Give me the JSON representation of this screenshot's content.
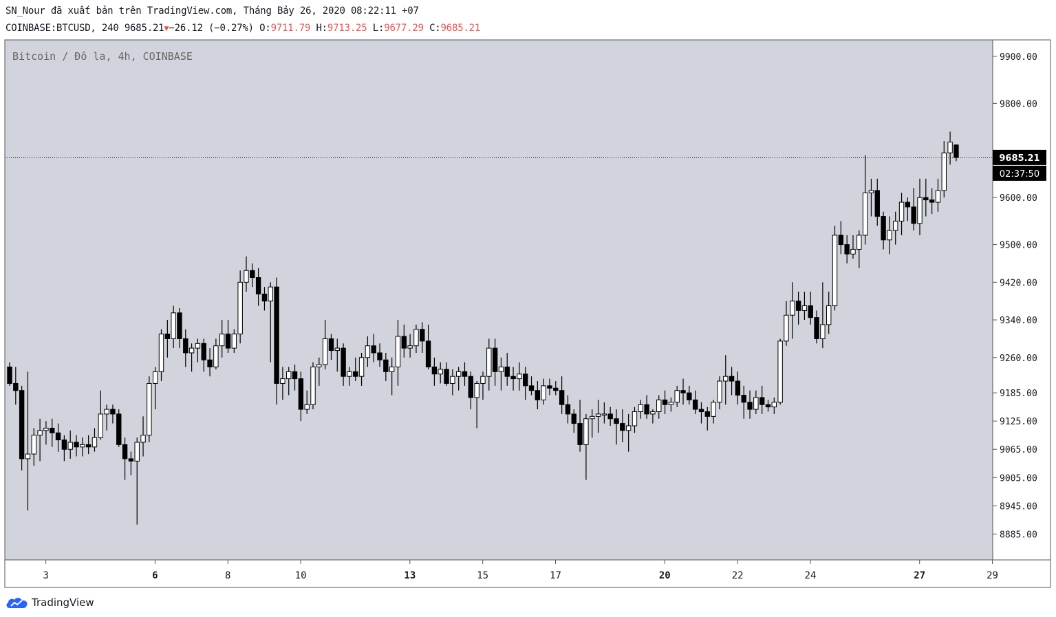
{
  "header": {
    "line1": "SN_Nour đã xuất bản trên TradingView.com, Tháng Bảy 26, 2020 08:22:11 +07",
    "symbol": "COINBASE:BTCUSD, 240",
    "last": "9685.21",
    "change": "−26.12 (−0.27%)",
    "o_label": "O:",
    "o_value": "9711.79",
    "h_label": "H:",
    "h_value": "9713.25",
    "l_label": "L:",
    "l_value": "9677.29",
    "c_label": "C:",
    "c_value": "9685.21"
  },
  "colors": {
    "plot_bg": "#d1d4dc",
    "candle_up": "#ffffff",
    "candle_down": "#000000",
    "wick": "#000000",
    "price_label_bg": "#000000",
    "price_label_text": "#ffffff",
    "down_accent": "#ef5350",
    "brand_blue": "#2962ff"
  },
  "brand": {
    "name": "TradingView",
    "icon": "tradingview-cloud-icon"
  },
  "chart_data": {
    "type": "candlestick",
    "title": "Bitcoin / Đô la, 4h, COINBASE",
    "ylim": [
      8830,
      9935
    ],
    "y_ticks": [
      {
        "label": "9900.00",
        "value": 9900
      },
      {
        "label": "9800.00",
        "value": 9800
      },
      {
        "label": "9500.00",
        "value": 9500
      },
      {
        "label": "9420.00",
        "value": 9420
      },
      {
        "label": "9340.00",
        "value": 9340
      },
      {
        "label": "9260.00",
        "value": 9260
      },
      {
        "label": "9185.00",
        "value": 9185
      },
      {
        "label": "9125.00",
        "value": 9125
      },
      {
        "label": "9065.00",
        "value": 9065
      },
      {
        "label": "9005.00",
        "value": 9005
      },
      {
        "label": "8945.00",
        "value": 8945
      },
      {
        "label": "8885.00",
        "value": 8885
      }
    ],
    "extra_tick": {
      "label": "9600.00",
      "value": 9600
    },
    "x_ticks": [
      {
        "label": "3",
        "index": 2,
        "bold": false
      },
      {
        "label": "6",
        "index": 20,
        "bold": true
      },
      {
        "label": "8",
        "index": 32,
        "bold": false
      },
      {
        "label": "10",
        "index": 44,
        "bold": false
      },
      {
        "label": "13",
        "index": 62,
        "bold": true
      },
      {
        "label": "15",
        "index": 74,
        "bold": false
      },
      {
        "label": "17",
        "index": 86,
        "bold": false
      },
      {
        "label": "20",
        "index": 104,
        "bold": true
      },
      {
        "label": "22",
        "index": 116,
        "bold": false
      },
      {
        "label": "24",
        "index": 128,
        "bold": false
      },
      {
        "label": "27",
        "index": 146,
        "bold": true
      },
      {
        "label": "29",
        "index": 158,
        "bold": false
      }
    ],
    "last_price": {
      "value": 9685.21,
      "label": "9685.21",
      "countdown": "02:37:50"
    },
    "candles": [
      [
        9240,
        9250,
        9200,
        9205
      ],
      [
        9205,
        9240,
        9160,
        9190
      ],
      [
        9190,
        9200,
        9020,
        9045
      ],
      [
        9045,
        9230,
        8935,
        9055
      ],
      [
        9055,
        9110,
        9030,
        9095
      ],
      [
        9095,
        9130,
        9040,
        9105
      ],
      [
        9105,
        9125,
        9075,
        9110
      ],
      [
        9110,
        9130,
        9070,
        9100
      ],
      [
        9100,
        9120,
        9060,
        9085
      ],
      [
        9085,
        9095,
        9040,
        9065
      ],
      [
        9065,
        9105,
        9045,
        9080
      ],
      [
        9080,
        9095,
        9050,
        9070
      ],
      [
        9070,
        9090,
        9050,
        9075
      ],
      [
        9075,
        9095,
        9055,
        9070
      ],
      [
        9070,
        9110,
        9060,
        9090
      ],
      [
        9090,
        9190,
        9085,
        9140
      ],
      [
        9140,
        9160,
        9105,
        9150
      ],
      [
        9150,
        9160,
        9120,
        9140
      ],
      [
        9140,
        9150,
        9070,
        9075
      ],
      [
        9075,
        9090,
        9000,
        9045
      ],
      [
        9045,
        9060,
        9010,
        9040
      ],
      [
        9040,
        9090,
        8905,
        9080
      ],
      [
        9080,
        9135,
        9050,
        9095
      ],
      [
        9095,
        9220,
        9080,
        9205
      ],
      [
        9205,
        9240,
        9150,
        9230
      ],
      [
        9230,
        9320,
        9210,
        9310
      ],
      [
        9310,
        9340,
        9260,
        9300
      ],
      [
        9300,
        9370,
        9280,
        9355
      ],
      [
        9355,
        9365,
        9280,
        9300
      ],
      [
        9300,
        9320,
        9240,
        9270
      ],
      [
        9270,
        9290,
        9230,
        9280
      ],
      [
        9280,
        9300,
        9250,
        9290
      ],
      [
        9290,
        9300,
        9230,
        9255
      ],
      [
        9255,
        9280,
        9220,
        9240
      ],
      [
        9240,
        9300,
        9235,
        9285
      ],
      [
        9285,
        9340,
        9260,
        9310
      ],
      [
        9310,
        9340,
        9270,
        9280
      ],
      [
        9280,
        9320,
        9270,
        9310
      ],
      [
        9310,
        9445,
        9290,
        9420
      ],
      [
        9420,
        9475,
        9400,
        9445
      ],
      [
        9445,
        9460,
        9410,
        9430
      ],
      [
        9430,
        9450,
        9370,
        9395
      ],
      [
        9395,
        9410,
        9360,
        9380
      ],
      [
        9380,
        9420,
        9250,
        9410
      ],
      [
        9410,
        9430,
        9160,
        9205
      ],
      [
        9205,
        9240,
        9170,
        9215
      ],
      [
        9215,
        9240,
        9180,
        9230
      ],
      [
        9230,
        9245,
        9190,
        9215
      ],
      [
        9215,
        9230,
        9125,
        9150
      ],
      [
        9150,
        9190,
        9140,
        9160
      ],
      [
        9160,
        9250,
        9150,
        9240
      ],
      [
        9240,
        9260,
        9200,
        9245
      ],
      [
        9245,
        9340,
        9235,
        9300
      ],
      [
        9300,
        9310,
        9255,
        9275
      ],
      [
        9275,
        9300,
        9230,
        9280
      ],
      [
        9280,
        9290,
        9200,
        9220
      ],
      [
        9220,
        9240,
        9200,
        9230
      ],
      [
        9230,
        9260,
        9210,
        9220
      ],
      [
        9220,
        9270,
        9200,
        9260
      ],
      [
        9260,
        9305,
        9240,
        9285
      ],
      [
        9285,
        9310,
        9250,
        9270
      ],
      [
        9270,
        9290,
        9240,
        9255
      ],
      [
        9255,
        9270,
        9210,
        9230
      ],
      [
        9230,
        9260,
        9180,
        9240
      ],
      [
        9240,
        9340,
        9200,
        9305
      ],
      [
        9305,
        9330,
        9260,
        9280
      ],
      [
        9280,
        9310,
        9260,
        9285
      ],
      [
        9285,
        9330,
        9270,
        9320
      ],
      [
        9320,
        9335,
        9270,
        9295
      ],
      [
        9295,
        9330,
        9235,
        9240
      ],
      [
        9240,
        9260,
        9200,
        9225
      ],
      [
        9225,
        9250,
        9205,
        9235
      ],
      [
        9235,
        9250,
        9200,
        9205
      ],
      [
        9205,
        9235,
        9180,
        9220
      ],
      [
        9220,
        9240,
        9190,
        9230
      ],
      [
        9230,
        9250,
        9200,
        9220
      ],
      [
        9220,
        9230,
        9150,
        9175
      ],
      [
        9175,
        9210,
        9110,
        9205
      ],
      [
        9205,
        9230,
        9170,
        9220
      ],
      [
        9220,
        9300,
        9190,
        9280
      ],
      [
        9280,
        9300,
        9200,
        9230
      ],
      [
        9230,
        9260,
        9190,
        9240
      ],
      [
        9240,
        9270,
        9200,
        9220
      ],
      [
        9220,
        9240,
        9190,
        9215
      ],
      [
        9215,
        9250,
        9190,
        9225
      ],
      [
        9225,
        9240,
        9170,
        9200
      ],
      [
        9200,
        9220,
        9180,
        9190
      ],
      [
        9190,
        9210,
        9150,
        9170
      ],
      [
        9170,
        9215,
        9160,
        9200
      ],
      [
        9200,
        9215,
        9180,
        9195
      ],
      [
        9195,
        9210,
        9180,
        9190
      ],
      [
        9190,
        9220,
        9140,
        9160
      ],
      [
        9160,
        9180,
        9120,
        9140
      ],
      [
        9140,
        9150,
        9100,
        9120
      ],
      [
        9120,
        9170,
        9060,
        9075
      ],
      [
        9075,
        9140,
        9000,
        9130
      ],
      [
        9130,
        9150,
        9090,
        9135
      ],
      [
        9135,
        9170,
        9100,
        9140
      ],
      [
        9140,
        9165,
        9120,
        9140
      ],
      [
        9140,
        9155,
        9115,
        9130
      ],
      [
        9130,
        9150,
        9075,
        9120
      ],
      [
        9120,
        9150,
        9080,
        9105
      ],
      [
        9105,
        9140,
        9060,
        9115
      ],
      [
        9115,
        9155,
        9100,
        9145
      ],
      [
        9145,
        9170,
        9130,
        9160
      ],
      [
        9160,
        9180,
        9130,
        9140
      ],
      [
        9140,
        9150,
        9120,
        9145
      ],
      [
        9145,
        9180,
        9130,
        9170
      ],
      [
        9170,
        9190,
        9140,
        9160
      ],
      [
        9160,
        9175,
        9145,
        9165
      ],
      [
        9165,
        9200,
        9155,
        9190
      ],
      [
        9190,
        9215,
        9160,
        9185
      ],
      [
        9185,
        9200,
        9160,
        9170
      ],
      [
        9170,
        9190,
        9140,
        9150
      ],
      [
        9150,
        9165,
        9120,
        9145
      ],
      [
        9145,
        9155,
        9105,
        9135
      ],
      [
        9135,
        9170,
        9120,
        9165
      ],
      [
        9165,
        9220,
        9150,
        9210
      ],
      [
        9210,
        9265,
        9160,
        9220
      ],
      [
        9220,
        9240,
        9180,
        9210
      ],
      [
        9210,
        9230,
        9160,
        9180
      ],
      [
        9180,
        9200,
        9130,
        9165
      ],
      [
        9165,
        9190,
        9130,
        9150
      ],
      [
        9150,
        9190,
        9140,
        9175
      ],
      [
        9175,
        9200,
        9140,
        9160
      ],
      [
        9160,
        9170,
        9145,
        9155
      ],
      [
        9155,
        9175,
        9140,
        9165
      ],
      [
        9165,
        9300,
        9160,
        9295
      ],
      [
        9295,
        9380,
        9285,
        9350
      ],
      [
        9350,
        9420,
        9300,
        9380
      ],
      [
        9380,
        9400,
        9330,
        9360
      ],
      [
        9360,
        9400,
        9340,
        9370
      ],
      [
        9370,
        9400,
        9330,
        9345
      ],
      [
        9345,
        9360,
        9290,
        9300
      ],
      [
        9300,
        9420,
        9280,
        9330
      ],
      [
        9330,
        9400,
        9310,
        9370
      ],
      [
        9370,
        9540,
        9360,
        9520
      ],
      [
        9520,
        9550,
        9480,
        9500
      ],
      [
        9500,
        9520,
        9460,
        9480
      ],
      [
        9480,
        9520,
        9470,
        9490
      ],
      [
        9490,
        9530,
        9450,
        9520
      ],
      [
        9520,
        9690,
        9500,
        9610
      ],
      [
        9610,
        9640,
        9560,
        9615
      ],
      [
        9615,
        9640,
        9540,
        9560
      ],
      [
        9560,
        9570,
        9490,
        9510
      ],
      [
        9510,
        9560,
        9480,
        9530
      ],
      [
        9530,
        9570,
        9500,
        9550
      ],
      [
        9550,
        9610,
        9520,
        9590
      ],
      [
        9590,
        9600,
        9550,
        9580
      ],
      [
        9580,
        9620,
        9530,
        9545
      ],
      [
        9545,
        9640,
        9520,
        9600
      ],
      [
        9600,
        9640,
        9560,
        9595
      ],
      [
        9595,
        9620,
        9565,
        9590
      ],
      [
        9590,
        9640,
        9570,
        9615
      ],
      [
        9615,
        9720,
        9600,
        9695
      ],
      [
        9695,
        9740,
        9670,
        9718
      ],
      [
        9711.79,
        9713.25,
        9677.29,
        9685.21
      ]
    ]
  }
}
